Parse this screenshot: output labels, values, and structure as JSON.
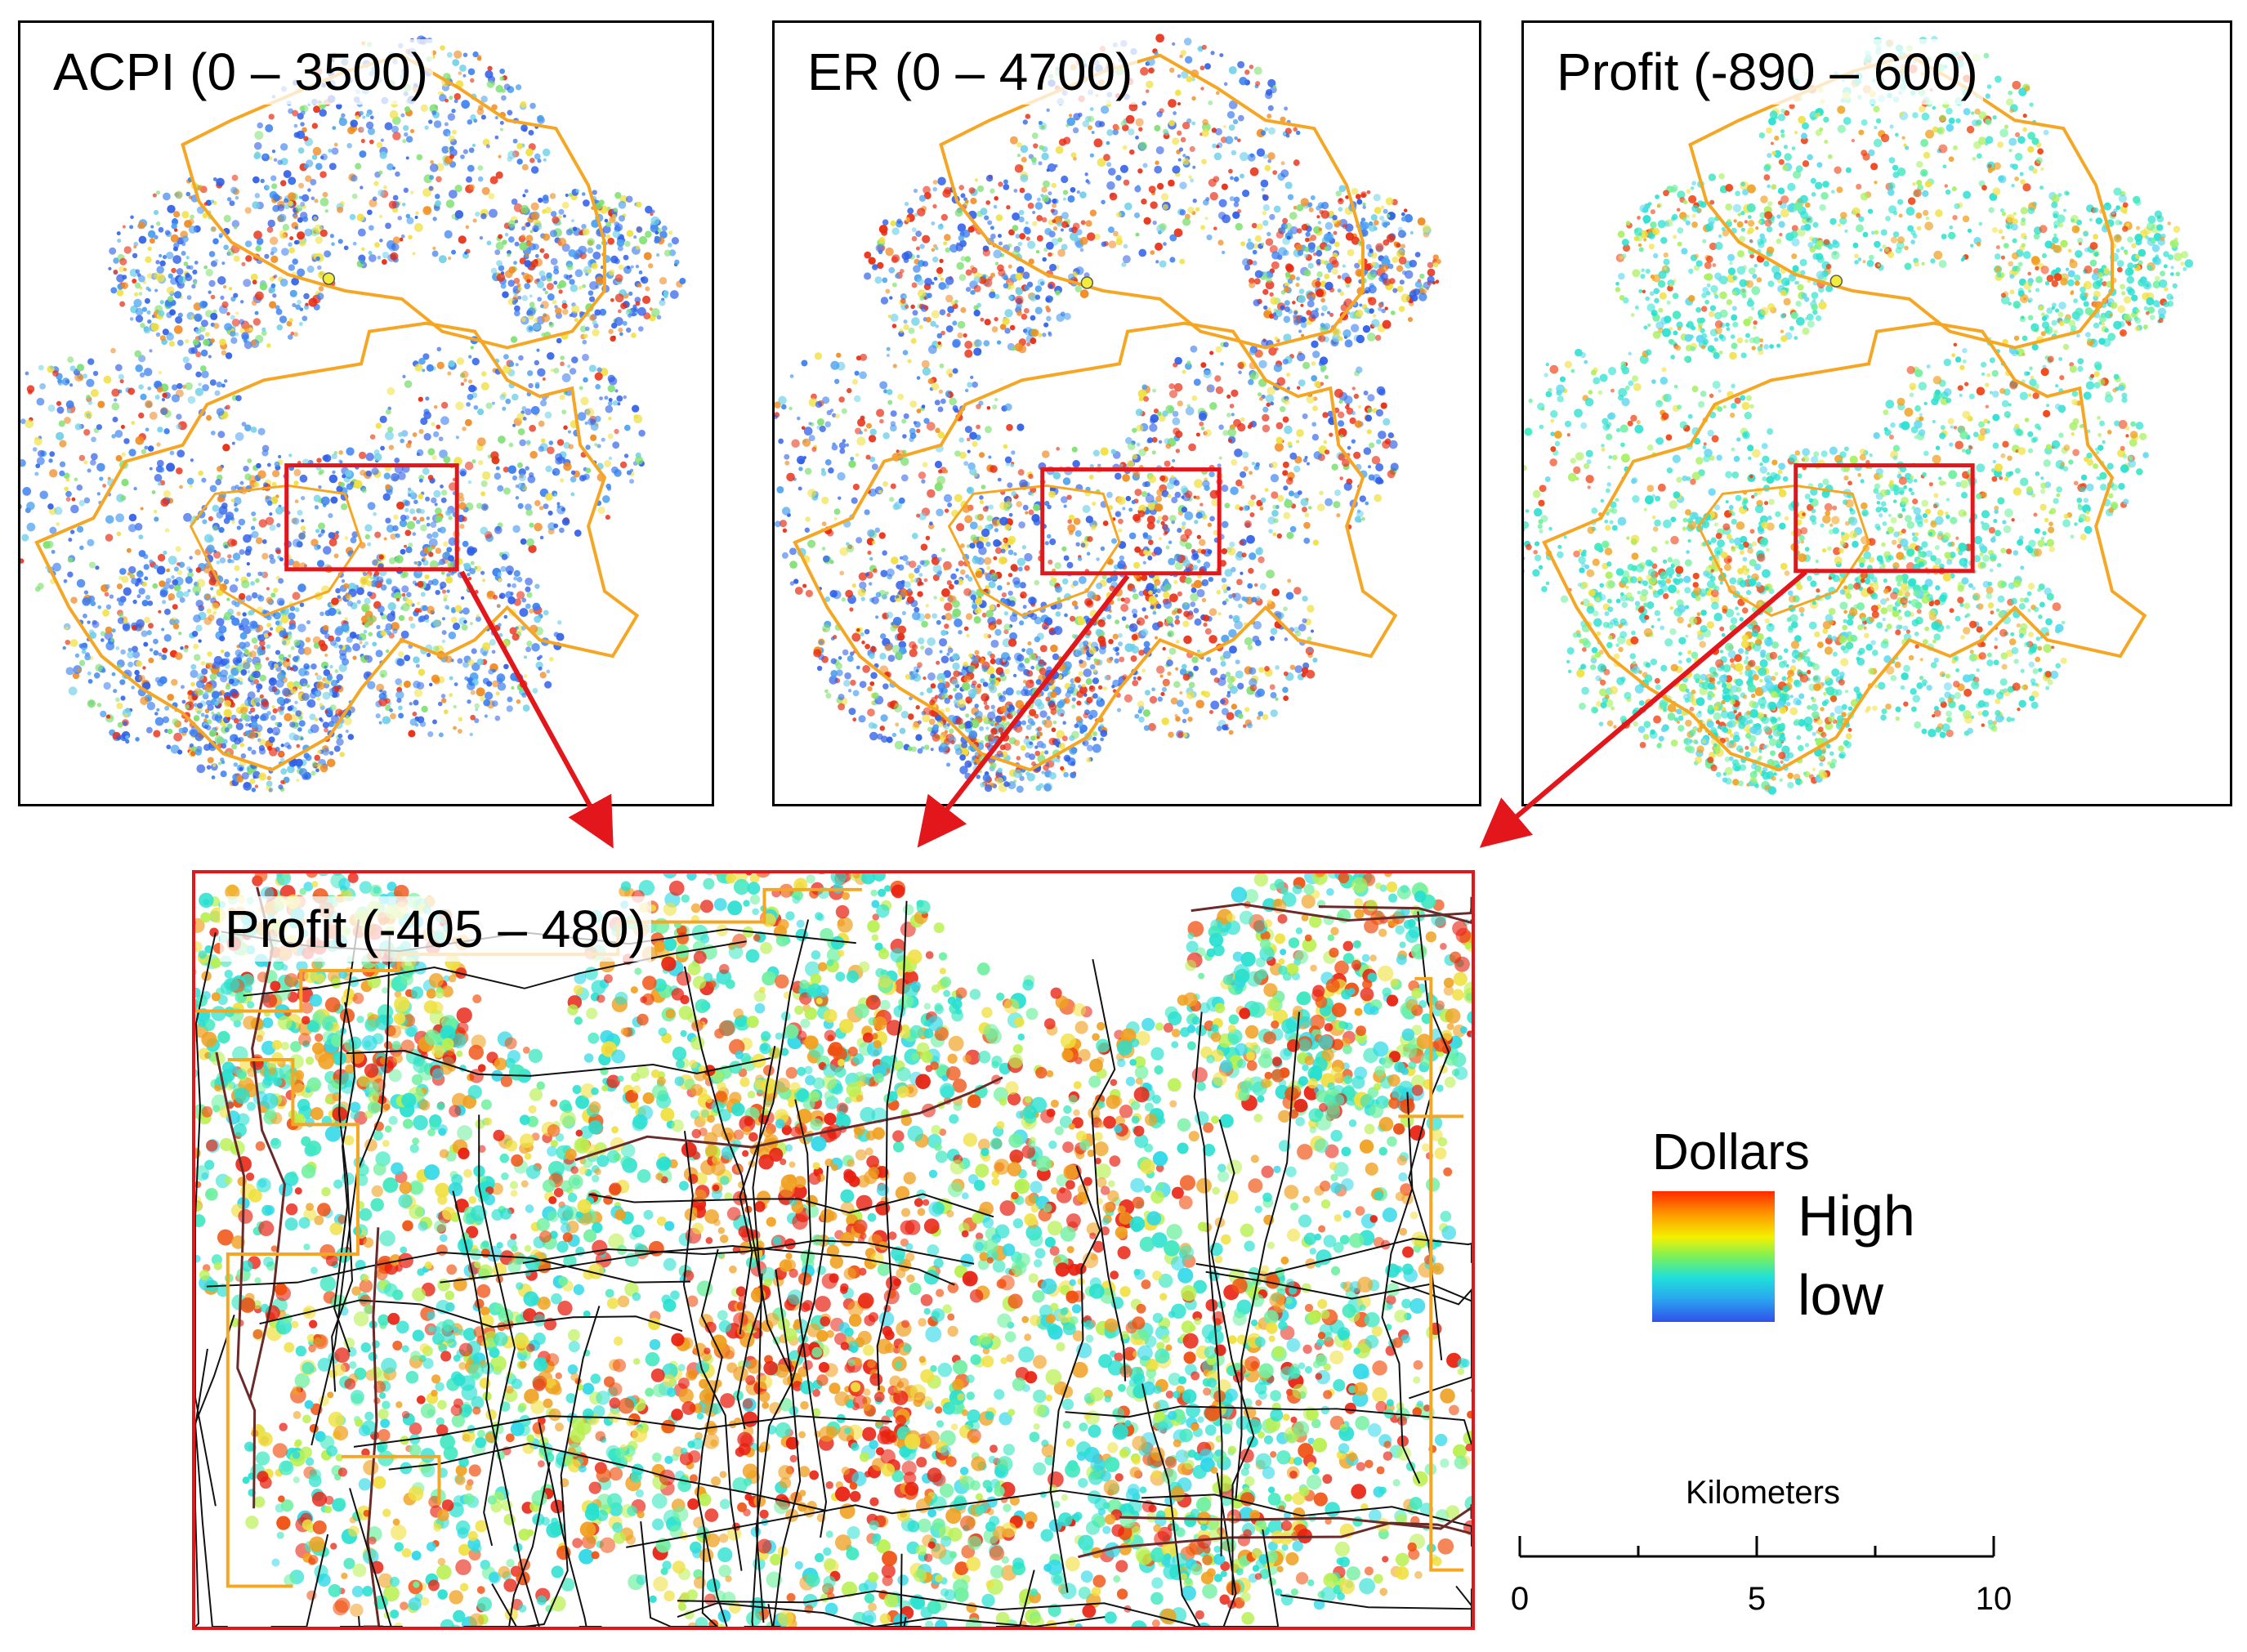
{
  "panels": {
    "acpi": {
      "title": "ACPI (0 – 3500)"
    },
    "er": {
      "title": "ER (0 – 4700)"
    },
    "profit": {
      "title": "Profit (-890 – 600)"
    },
    "zoom": {
      "title": "Profit (-405 – 480)"
    }
  },
  "legend": {
    "title": "Dollars",
    "high": "High",
    "low": "low",
    "ramp_colors": [
      "#ff2a00",
      "#ff9a00",
      "#f4f000",
      "#7df058",
      "#1fe0d8",
      "#2aa8f0",
      "#3050e8"
    ]
  },
  "scale_bar": {
    "title": "Kilometers",
    "labels": [
      "0",
      "5",
      "10"
    ]
  },
  "colors": {
    "study_boundary": "#f5a623",
    "highlight": "#e3161b",
    "roads": "#111111",
    "point_marker": "#f2ec3a"
  }
}
